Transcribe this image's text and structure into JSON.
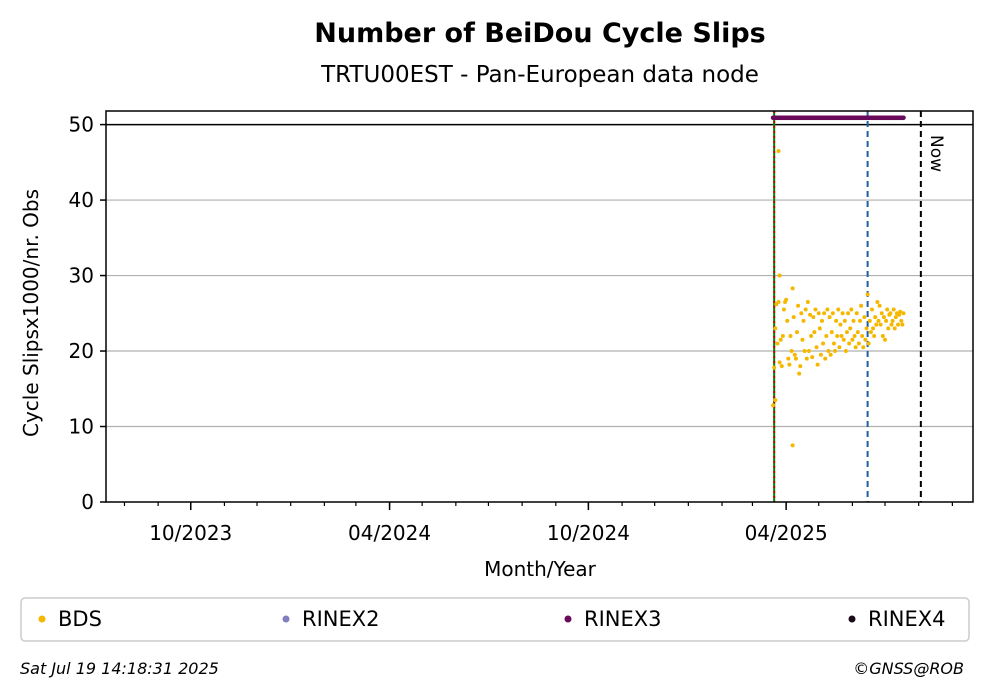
{
  "chart_data": {
    "type": "scatter",
    "title": "Number of BeiDou Cycle Slips",
    "subtitle": "TRTU00EST - Pan-European data node",
    "xlabel": "Month/Year",
    "ylabel": "Cycle Slipsx1000/nr. Obs",
    "xlim": [
      "2023-07-15",
      "2025-09-20"
    ],
    "ylim": [
      0,
      51.8
    ],
    "y_ticks": [
      0,
      10,
      20,
      30,
      40,
      50
    ],
    "x_ticks": [
      {
        "date": "2023-10-01",
        "label": "10/2023"
      },
      {
        "date": "2024-04-01",
        "label": "04/2024"
      },
      {
        "date": "2024-10-01",
        "label": "10/2024"
      },
      {
        "date": "2025-04-01",
        "label": "04/2025"
      }
    ],
    "grid": "horizontal",
    "reference_line_y": 50,
    "vertical_lines": [
      {
        "date": "2025-03-21",
        "color": "#008000",
        "style": "solid"
      },
      {
        "date": "2025-03-21",
        "color": "#cc0000",
        "style": "dotted"
      },
      {
        "date": "2025-06-15",
        "color": "#1f5fa8",
        "style": "dashed"
      },
      {
        "date": "2025-08-03",
        "color": "#000000",
        "style": "dashed",
        "label": "Now"
      }
    ],
    "series": [
      {
        "name": "BDS",
        "color": "#f5b800",
        "points": [
          [
            "2025-03-20",
            12.8
          ],
          [
            "2025-03-21",
            17.8
          ],
          [
            "2025-03-22",
            13.5
          ],
          [
            "2025-03-22",
            23.0
          ],
          [
            "2025-03-23",
            26.2
          ],
          [
            "2025-03-24",
            21.0
          ],
          [
            "2025-03-25",
            26.5
          ],
          [
            "2025-03-25",
            46.5
          ],
          [
            "2025-03-26",
            30.0
          ],
          [
            "2025-03-26",
            18.5
          ],
          [
            "2025-03-27",
            21.5
          ],
          [
            "2025-03-28",
            18.0
          ],
          [
            "2025-03-29",
            22.0
          ],
          [
            "2025-03-30",
            25.5
          ],
          [
            "2025-03-31",
            26.5
          ],
          [
            "2025-04-01",
            26.8
          ],
          [
            "2025-04-02",
            24.0
          ],
          [
            "2025-04-03",
            19.0
          ],
          [
            "2025-04-04",
            18.2
          ],
          [
            "2025-04-05",
            22.0
          ],
          [
            "2025-04-06",
            20.0
          ],
          [
            "2025-04-07",
            28.3
          ],
          [
            "2025-04-07",
            7.5
          ],
          [
            "2025-04-08",
            24.5
          ],
          [
            "2025-04-09",
            19.5
          ],
          [
            "2025-04-10",
            19.0
          ],
          [
            "2025-04-11",
            22.5
          ],
          [
            "2025-04-12",
            26.0
          ],
          [
            "2025-04-13",
            17.0
          ],
          [
            "2025-04-14",
            18.0
          ],
          [
            "2025-04-15",
            25.0
          ],
          [
            "2025-04-16",
            21.5
          ],
          [
            "2025-04-17",
            24.0
          ],
          [
            "2025-04-18",
            20.0
          ],
          [
            "2025-04-19",
            25.5
          ],
          [
            "2025-04-20",
            19.0
          ],
          [
            "2025-04-21",
            26.5
          ],
          [
            "2025-04-22",
            20.0
          ],
          [
            "2025-04-23",
            24.8
          ],
          [
            "2025-04-24",
            22.0
          ],
          [
            "2025-04-25",
            19.2
          ],
          [
            "2025-04-26",
            24.5
          ],
          [
            "2025-04-27",
            22.5
          ],
          [
            "2025-04-28",
            25.5
          ],
          [
            "2025-04-29",
            20.5
          ],
          [
            "2025-04-30",
            18.2
          ],
          [
            "2025-05-01",
            25.0
          ],
          [
            "2025-05-02",
            23.0
          ],
          [
            "2025-05-03",
            19.5
          ],
          [
            "2025-05-04",
            24.0
          ],
          [
            "2025-05-05",
            21.0
          ],
          [
            "2025-05-06",
            25.0
          ],
          [
            "2025-05-07",
            19.0
          ],
          [
            "2025-05-08",
            22.0
          ],
          [
            "2025-05-09",
            25.5
          ],
          [
            "2025-05-10",
            20.0
          ],
          [
            "2025-05-11",
            24.5
          ],
          [
            "2025-05-12",
            19.5
          ],
          [
            "2025-05-13",
            22.5
          ],
          [
            "2025-05-14",
            25.0
          ],
          [
            "2025-05-15",
            21.0
          ],
          [
            "2025-05-16",
            20.0
          ],
          [
            "2025-05-17",
            24.0
          ],
          [
            "2025-05-18",
            22.0
          ],
          [
            "2025-05-19",
            25.5
          ],
          [
            "2025-05-20",
            20.5
          ],
          [
            "2025-05-21",
            23.5
          ],
          [
            "2025-05-22",
            22.0
          ],
          [
            "2025-05-23",
            25.0
          ],
          [
            "2025-05-24",
            21.5
          ],
          [
            "2025-05-25",
            24.0
          ],
          [
            "2025-05-26",
            20.0
          ],
          [
            "2025-05-27",
            22.5
          ],
          [
            "2025-05-28",
            25.0
          ],
          [
            "2025-05-29",
            21.0
          ],
          [
            "2025-05-30",
            23.0
          ],
          [
            "2025-05-31",
            25.5
          ],
          [
            "2025-06-01",
            21.5
          ],
          [
            "2025-06-02",
            24.0
          ],
          [
            "2025-06-03",
            22.0
          ],
          [
            "2025-06-04",
            20.5
          ],
          [
            "2025-06-05",
            25.0
          ],
          [
            "2025-06-06",
            22.5
          ],
          [
            "2025-06-07",
            21.0
          ],
          [
            "2025-06-08",
            24.0
          ],
          [
            "2025-06-09",
            26.0
          ],
          [
            "2025-06-10",
            22.0
          ],
          [
            "2025-06-11",
            20.5
          ],
          [
            "2025-06-12",
            24.5
          ],
          [
            "2025-06-13",
            21.5
          ],
          [
            "2025-06-14",
            23.0
          ],
          [
            "2025-06-15",
            27.5
          ],
          [
            "2025-06-16",
            21.0
          ],
          [
            "2025-06-17",
            24.0
          ],
          [
            "2025-06-18",
            22.5
          ],
          [
            "2025-06-19",
            25.5
          ],
          [
            "2025-06-20",
            23.0
          ],
          [
            "2025-06-21",
            22.0
          ],
          [
            "2025-06-22",
            24.5
          ],
          [
            "2025-06-23",
            23.5
          ],
          [
            "2025-06-24",
            26.5
          ],
          [
            "2025-06-25",
            24.0
          ],
          [
            "2025-06-26",
            26.0
          ],
          [
            "2025-06-27",
            23.5
          ],
          [
            "2025-06-28",
            25.0
          ],
          [
            "2025-06-29",
            22.0
          ],
          [
            "2025-06-30",
            24.5
          ],
          [
            "2025-07-01",
            21.5
          ],
          [
            "2025-07-02",
            24.0
          ],
          [
            "2025-07-03",
            25.5
          ],
          [
            "2025-07-04",
            23.0
          ],
          [
            "2025-07-05",
            24.8
          ],
          [
            "2025-07-06",
            25.0
          ],
          [
            "2025-07-07",
            23.5
          ],
          [
            "2025-07-08",
            24.0
          ],
          [
            "2025-07-09",
            25.5
          ],
          [
            "2025-07-10",
            23.0
          ],
          [
            "2025-07-11",
            24.5
          ],
          [
            "2025-07-12",
            25.0
          ],
          [
            "2025-07-13",
            23.5
          ],
          [
            "2025-07-14",
            24.8
          ],
          [
            "2025-07-15",
            25.2
          ],
          [
            "2025-07-16",
            24.0
          ],
          [
            "2025-07-17",
            23.5
          ],
          [
            "2025-07-18",
            25.0
          ]
        ]
      },
      {
        "name": "RINEX2",
        "color": "#8080c0",
        "points": []
      },
      {
        "name": "RINEX3",
        "color": "#6a0a5a",
        "y_constant": 50.9,
        "start": "2025-03-20",
        "end": "2025-07-18"
      },
      {
        "name": "RINEX4",
        "color": "#1a0a1a",
        "points": []
      }
    ]
  },
  "footer": {
    "timestamp": "Sat Jul 19 14:18:31 2025",
    "copyright": "©GNSS@ROB"
  }
}
